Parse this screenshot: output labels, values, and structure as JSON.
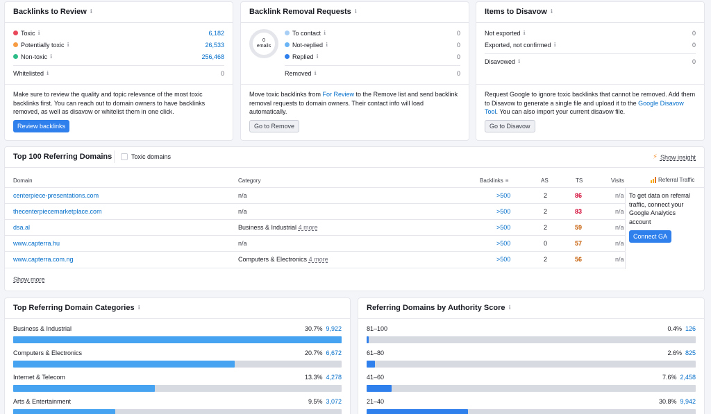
{
  "backlinks_review": {
    "title": "Backlinks to Review",
    "rows": [
      {
        "label": "Toxic",
        "value": "6,182",
        "color": "#e8485a"
      },
      {
        "label": "Potentially toxic",
        "value": "26,533",
        "color": "#f79c43"
      },
      {
        "label": "Non-toxic",
        "value": "256,468",
        "color": "#2ebc89"
      }
    ],
    "whitelisted_label": "Whitelisted",
    "whitelisted_value": "0",
    "description": "Make sure to review the quality and topic relevance of the most toxic backlinks first. You can reach out to domain owners to have backlinks removed, as well as disavow or whitelist them in one click.",
    "button": "Review backlinks"
  },
  "removal_requests": {
    "title": "Backlink Removal Requests",
    "donut_value": "0",
    "donut_label": "emails",
    "rows": [
      {
        "label": "To contact",
        "value": "0",
        "color": "#a7cff5"
      },
      {
        "label": "Not-replied",
        "value": "0",
        "color": "#6ab4f5"
      },
      {
        "label": "Replied",
        "value": "0",
        "color": "#2f80ed"
      }
    ],
    "removed_label": "Removed",
    "removed_value": "0",
    "desc_part1": "Move toxic backlinks from ",
    "desc_link": "For Review",
    "desc_part2": " to the Remove list and send backlink removal requests to domain owners. Their contact info will load automatically.",
    "button": "Go to Remove"
  },
  "disavow": {
    "title": "Items to Disavow",
    "rows": [
      {
        "label": "Not exported",
        "value": "0"
      },
      {
        "label": "Exported, not confirmed",
        "value": "0"
      }
    ],
    "disavowed_label": "Disavowed",
    "disavowed_value": "0",
    "desc_part1": "Request Google to ignore toxic backlinks that cannot be removed. Add them to Disavow to generate a single file and upload it to the ",
    "desc_link": "Google Disavow Tool",
    "desc_part2": ". You can also import your current disavow file.",
    "button": "Go to Disavow"
  },
  "top_domains": {
    "title": "Top 100 Referring Domains",
    "toxic_checkbox_label": "Toxic domains",
    "show_insight": "Show insight",
    "headers": {
      "domain": "Domain",
      "category": "Category",
      "backlinks": "Backlinks",
      "as": "AS",
      "ts": "TS",
      "visits": "Visits",
      "referral": "Referral Traffic"
    },
    "rows": [
      {
        "domain": "centerpiece-presentations.com",
        "category": "n/a",
        "more": "",
        "backlinks": ">500",
        "as": "2",
        "ts": "86",
        "ts_color": "#d1002f",
        "visits": "n/a"
      },
      {
        "domain": "thecenterpiecemarketplace.com",
        "category": "n/a",
        "more": "",
        "backlinks": ">500",
        "as": "2",
        "ts": "83",
        "ts_color": "#d1002f",
        "visits": "n/a"
      },
      {
        "domain": "dsa.al",
        "category": "Business & Industrial",
        "more": "4 more",
        "backlinks": ">500",
        "as": "2",
        "ts": "59",
        "ts_color": "#c45a00",
        "visits": "n/a"
      },
      {
        "domain": "www.capterra.hu",
        "category": "n/a",
        "more": "",
        "backlinks": ">500",
        "as": "0",
        "ts": "57",
        "ts_color": "#c45a00",
        "visits": "n/a"
      },
      {
        "domain": "www.capterra.com.ng",
        "category": "Computers & Electronics",
        "more": "4 more",
        "backlinks": ">500",
        "as": "2",
        "ts": "56",
        "ts_color": "#c45a00",
        "visits": "n/a"
      }
    ],
    "referral_text": "To get data on referral traffic, connect your Google Analytics account",
    "connect_button": "Connect GA",
    "show_more": "Show more"
  },
  "categories": {
    "title": "Top Referring Domain Categories",
    "items": [
      {
        "label": "Business & Industrial",
        "percent": "30.7%",
        "count": "9,922",
        "fill": 1.0
      },
      {
        "label": "Computers & Electronics",
        "percent": "20.7%",
        "count": "6,672",
        "fill": 0.674
      },
      {
        "label": "Internet & Telecom",
        "percent": "13.3%",
        "count": "4,278",
        "fill": 0.431
      },
      {
        "label": "Arts & Entertainment",
        "percent": "9.5%",
        "count": "3,072",
        "fill": 0.31
      }
    ]
  },
  "authority": {
    "title": "Referring Domains by Authority Score",
    "items": [
      {
        "label": "81–100",
        "percent": "0.4%",
        "count": "126",
        "fill": 0.004
      },
      {
        "label": "61–80",
        "percent": "2.6%",
        "count": "825",
        "fill": 0.026
      },
      {
        "label": "41–60",
        "percent": "7.6%",
        "count": "2,458",
        "fill": 0.076
      },
      {
        "label": "21–40",
        "percent": "30.8%",
        "count": "9,942",
        "fill": 0.308
      }
    ]
  }
}
